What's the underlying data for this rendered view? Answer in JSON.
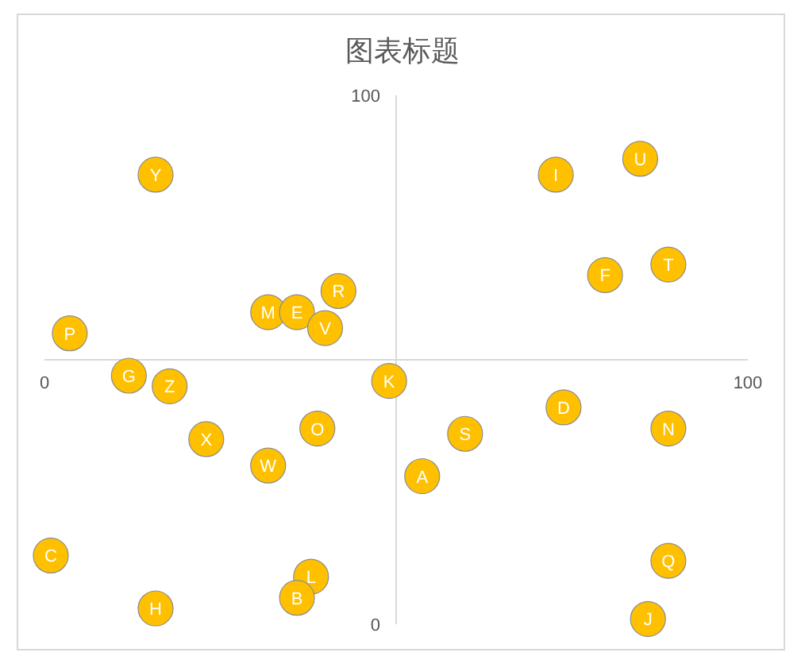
{
  "chart_data": {
    "type": "scatter",
    "title": "图表标题",
    "marker": "circle",
    "grid": false,
    "xlim": [
      0,
      100
    ],
    "ylim": [
      0,
      100
    ],
    "xticks": [
      0,
      100
    ],
    "yticks": [
      0,
      100
    ],
    "series": [
      {
        "color": "#ffc000",
        "x": [
          15.8,
          72.7,
          84.7,
          88.7,
          79.7,
          41.8,
          31.8,
          35.9,
          39.9,
          3.6,
          12,
          17.8,
          49,
          73.8,
          88.7,
          59.8,
          23,
          38.8,
          31.8,
          53.7,
          0.9,
          88.7,
          37.9,
          35.9,
          15.8,
          85.8
        ],
        "values": [
          85,
          85,
          88,
          68,
          66,
          63,
          59,
          59,
          56,
          55,
          47,
          45,
          46,
          41,
          37,
          36,
          35,
          37,
          30,
          28,
          13,
          12,
          9,
          5,
          3,
          1
        ],
        "value_labels": [
          "Y",
          "I",
          "U",
          "T",
          "F",
          "R",
          "M",
          "E",
          "V",
          "P",
          "G",
          "Z",
          "K",
          "D",
          "N",
          "S",
          "X",
          "O",
          "W",
          "A",
          "C",
          "Q",
          "L",
          "B",
          "H",
          "J"
        ]
      }
    ]
  }
}
